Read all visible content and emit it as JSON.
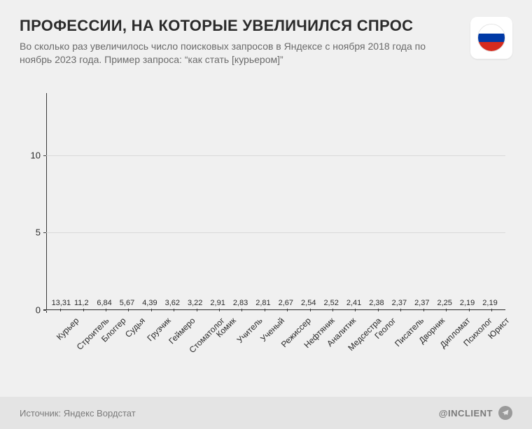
{
  "header": {
    "title": "ПРОФЕССИИ, НА КОТОРЫЕ УВЕЛИЧИЛСЯ СПРОС",
    "subtitle": "Во сколько раз увеличилось число поисковых запросов в Яндексе с ноября 2018 года по ноябрь 2023 года. Пример запроса: “как стать [курьером]”",
    "title_fontsize": 22,
    "title_color": "#2b2b2b",
    "subtitle_fontsize": 14,
    "subtitle_color": "#6a6a6a"
  },
  "flag": {
    "name": "russia-flag-icon",
    "stripes": [
      "#ffffff",
      "#0039a6",
      "#d52b1e"
    ]
  },
  "chart": {
    "type": "bar",
    "categories": [
      "Курьер",
      "Строитель",
      "Блоггер",
      "Судья",
      "Грузчик",
      "Геймеро",
      "Стоматолог",
      "Комик",
      "Учитель",
      "Ученый",
      "Режиссер",
      "Нефтяник",
      "Аналитик",
      "Медсестра",
      "Геолог",
      "Писатель",
      "Дворник",
      "Дипломат",
      "Психолог",
      "Юрист"
    ],
    "values": [
      13.31,
      11.2,
      6.84,
      5.67,
      4.39,
      3.62,
      3.22,
      2.91,
      2.83,
      2.81,
      2.67,
      2.54,
      2.52,
      2.41,
      2.38,
      2.37,
      2.37,
      2.25,
      2.19,
      2.19
    ],
    "value_labels": [
      "13,31",
      "11,2",
      "6,84",
      "5,67",
      "4,39",
      "3,62",
      "3,22",
      "2,91",
      "2,83",
      "2,81",
      "2,67",
      "2,54",
      "2,52",
      "2,41",
      "2,38",
      "2,37",
      "2,37",
      "2,25",
      "2,19",
      "2,19"
    ],
    "bar_colors": [
      "#6ab23f",
      "#333333",
      "#333333",
      "#333333",
      "#333333",
      "#333333",
      "#333333",
      "#333333",
      "#333333",
      "#333333",
      "#333333",
      "#333333",
      "#333333",
      "#333333",
      "#333333",
      "#333333",
      "#333333",
      "#333333",
      "#333333",
      "#333333"
    ],
    "ylim": [
      0,
      14
    ],
    "yticks": [
      0,
      5,
      10
    ],
    "ytick_labels": [
      "0",
      "5",
      "10"
    ],
    "grid_color": "#d9d9d9",
    "axis_color": "#3a3a3a",
    "background_color": "#f0f0f0",
    "bar_width": 0.78,
    "value_fontsize": 11,
    "xlabel_fontsize": 12,
    "xlabel_rotation": -45
  },
  "footer": {
    "source": "Источник: Яндекс Вордстат",
    "attribution": "@INCLIENT",
    "attribution_icon": "telegram-icon",
    "background_color": "#e4e4e4",
    "text_color": "#7a7a7a"
  }
}
